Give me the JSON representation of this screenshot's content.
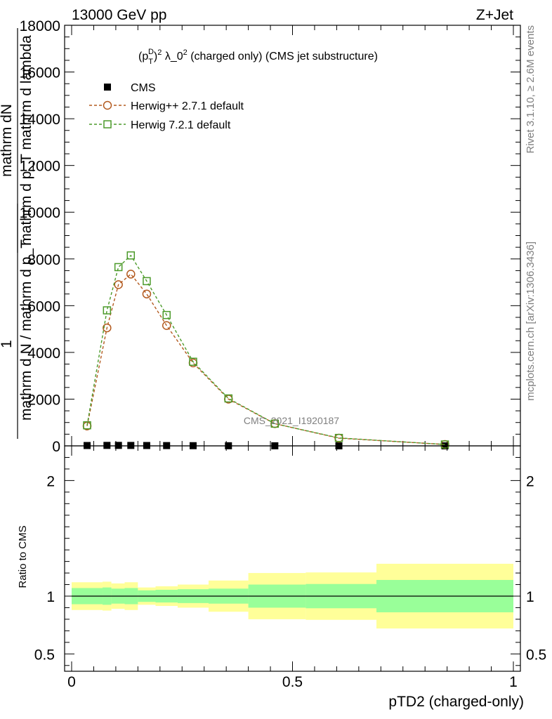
{
  "header": {
    "left": "13000 GeV pp",
    "right": "Z+Jet"
  },
  "side_labels": {
    "rivet": "Rivet 3.1.10, ≥ 2.6M events",
    "mcplots": "mcplots.cern.ch [arXiv:1306.3436]"
  },
  "watermark": "CMS_2021_I1920187",
  "chart_data": [
    {
      "type": "line",
      "title": "(p_T^D)^2 λ_0^2 (charged only) (CMS jet substructure)",
      "title_parts": {
        "lead": "(p",
        "sub": "T",
        "sup": "D",
        "close": ")",
        "exp": "2",
        "lambda": " λ_0",
        "exp2": "2",
        "rest": " (charged only) (CMS jet substructure)"
      },
      "ylabel_lines": [
        "mathrm dN",
        "mathrm d p_T mathrm d lambda",
        "1",
        "mathrm d N / mathrm d p_T"
      ],
      "xlim": [
        0,
        1
      ],
      "ylim": [
        0,
        18000
      ],
      "yticks": [
        0,
        2000,
        4000,
        6000,
        8000,
        10000,
        12000,
        14000,
        16000,
        18000
      ],
      "ytick_labels": [
        "0",
        "2000",
        "4000",
        "6000",
        "8000",
        "10000",
        "12000",
        "14000",
        "16000",
        "18000"
      ],
      "legend_position": "top-left",
      "legend": [
        {
          "label": "CMS",
          "color": "#000000",
          "marker": "filled-square"
        },
        {
          "label": "Herwig++ 2.7.1 default",
          "color": "#b35a1f",
          "marker": "open-circle"
        },
        {
          "label": "Herwig 7.2.1 default",
          "color": "#4c9a2a",
          "marker": "open-square"
        }
      ],
      "series": [
        {
          "name": "CMS",
          "x": [
            0.035,
            0.08,
            0.106,
            0.134,
            0.17,
            0.215,
            0.275,
            0.355,
            0.46,
            0.605,
            0.845
          ],
          "y": [
            15,
            20,
            20,
            18,
            15,
            12,
            8,
            5,
            3,
            1.5,
            0.5
          ]
        },
        {
          "name": "Herwig++ 2.7.1 default",
          "x": [
            0.035,
            0.08,
            0.106,
            0.134,
            0.17,
            0.215,
            0.275,
            0.355,
            0.46,
            0.605,
            0.845
          ],
          "y": [
            850,
            5050,
            6900,
            7350,
            6500,
            5150,
            3550,
            2000,
            950,
            330,
            60
          ]
        },
        {
          "name": "Herwig 7.2.1 default",
          "x": [
            0.035,
            0.08,
            0.106,
            0.134,
            0.17,
            0.215,
            0.275,
            0.355,
            0.46,
            0.605,
            0.845
          ],
          "y": [
            880,
            5800,
            7650,
            8150,
            7050,
            5600,
            3600,
            2030,
            950,
            340,
            60
          ]
        }
      ]
    },
    {
      "type": "area",
      "ylabel": "Ratio to CMS",
      "xlabel": "pTD2 (charged-only)",
      "xlim": [
        0,
        1
      ],
      "ylim": [
        0.35,
        2.3
      ],
      "xticks": [
        0,
        0.5,
        1
      ],
      "xtick_labels": [
        "0",
        "0.5",
        "1"
      ],
      "yticks": [
        0.5,
        1,
        2
      ],
      "ytick_labels": [
        "0.5",
        "1",
        "2"
      ],
      "band_colors": {
        "inner": "#99ff99",
        "outer": "#ffff99"
      },
      "bins": [
        {
          "x0": 0.0,
          "x1": 0.07,
          "inner": [
            0.93,
            1.07
          ],
          "outer": [
            0.88,
            1.12
          ]
        },
        {
          "x0": 0.07,
          "x1": 0.09,
          "inner": [
            0.925,
            1.075
          ],
          "outer": [
            0.875,
            1.125
          ]
        },
        {
          "x0": 0.09,
          "x1": 0.12,
          "inner": [
            0.935,
            1.065
          ],
          "outer": [
            0.89,
            1.11
          ]
        },
        {
          "x0": 0.12,
          "x1": 0.15,
          "inner": [
            0.93,
            1.07
          ],
          "outer": [
            0.88,
            1.12
          ]
        },
        {
          "x0": 0.15,
          "x1": 0.19,
          "inner": [
            0.95,
            1.05
          ],
          "outer": [
            0.925,
            1.075
          ]
        },
        {
          "x0": 0.19,
          "x1": 0.24,
          "inner": [
            0.945,
            1.055
          ],
          "outer": [
            0.915,
            1.085
          ]
        },
        {
          "x0": 0.24,
          "x1": 0.31,
          "inner": [
            0.94,
            1.06
          ],
          "outer": [
            0.9,
            1.1
          ]
        },
        {
          "x0": 0.31,
          "x1": 0.4,
          "inner": [
            0.935,
            1.065
          ],
          "outer": [
            0.865,
            1.135
          ]
        },
        {
          "x0": 0.4,
          "x1": 0.53,
          "inner": [
            0.9,
            1.1
          ],
          "outer": [
            0.8,
            1.2
          ]
        },
        {
          "x0": 0.53,
          "x1": 0.69,
          "inner": [
            0.895,
            1.105
          ],
          "outer": [
            0.795,
            1.205
          ]
        },
        {
          "x0": 0.69,
          "x1": 1.0,
          "inner": [
            0.86,
            1.14
          ],
          "outer": [
            0.72,
            1.28
          ]
        }
      ],
      "reference": 1
    }
  ]
}
